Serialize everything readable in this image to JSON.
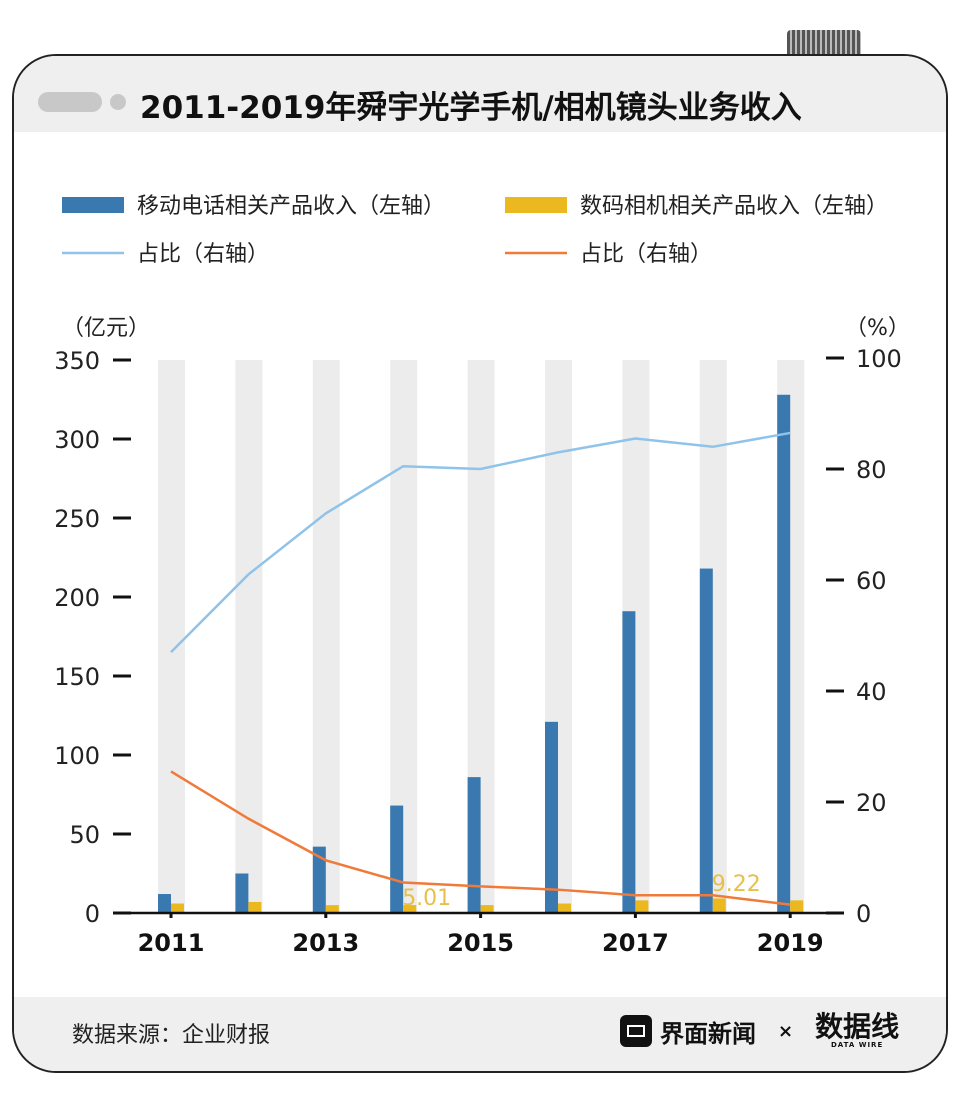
{
  "title": "2011-2019年舜宇光学手机/相机镜头业务收入",
  "footer": {
    "source": "数据来源：企业财报",
    "brand": "界面新闻",
    "times": "×",
    "partner": "数据线",
    "partner_sub": "DATA WIRE"
  },
  "chart_data": {
    "type": "bar+line",
    "title": "2011-2019年舜宇光学手机/相机镜头业务收入",
    "categories": [
      "2011",
      "2012",
      "2013",
      "2014",
      "2015",
      "2016",
      "2017",
      "2018",
      "2019"
    ],
    "x_tick_labels": [
      "2011",
      "2013",
      "2015",
      "2017",
      "2019"
    ],
    "left_axis": {
      "label": "（亿元）",
      "ylim": [
        0,
        350
      ],
      "ticks": [
        "0",
        "50",
        "100",
        "150",
        "200",
        "250",
        "300",
        "350"
      ]
    },
    "right_axis": {
      "label": "（%）",
      "ylim": [
        0,
        100
      ],
      "ticks": [
        "0",
        "20",
        "40",
        "60",
        "80",
        "100"
      ]
    },
    "series": [
      {
        "name": "移动电话相关产品收入（左轴）",
        "type": "bar",
        "axis": "left",
        "color": "#3a78b0",
        "values": [
          12,
          25,
          42,
          68,
          86,
          121,
          191,
          218,
          328
        ]
      },
      {
        "name": "数码相机相关产品收入（左轴）",
        "type": "bar",
        "axis": "left",
        "color": "#ecb820",
        "values": [
          6,
          7,
          5,
          5.01,
          5,
          6,
          8,
          9.22,
          8
        ]
      },
      {
        "name": "占比（右轴）",
        "type": "line",
        "axis": "right",
        "color": "#8fc3ea",
        "values": [
          47,
          61,
          72,
          80.5,
          80,
          83,
          85.5,
          84,
          86.5
        ]
      },
      {
        "name": "占比（右轴）",
        "type": "line",
        "axis": "right",
        "color": "#f07a3a",
        "values": [
          25.5,
          17,
          9.5,
          5.5,
          4.8,
          4.2,
          3.2,
          3.2,
          1.5
        ]
      }
    ],
    "annotations": [
      {
        "category": "2014",
        "text": "5.01"
      },
      {
        "category": "2018",
        "text": "9.22"
      }
    ],
    "legend": "top"
  }
}
